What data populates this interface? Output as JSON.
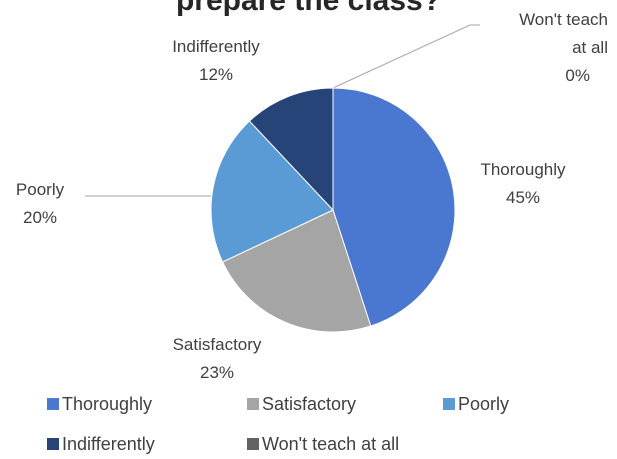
{
  "chart_data": {
    "type": "pie",
    "title": "prepare the class?",
    "categories": [
      "Thoroughly",
      "Satisfactory",
      "Poorly",
      "Indifferently",
      "Won't teach at all"
    ],
    "values": [
      45,
      23,
      20,
      12,
      0
    ],
    "value_labels": [
      "45%",
      "23%",
      "20%",
      "12%",
      "0%"
    ],
    "colors": [
      "#4a78d0",
      "#a5a5a5",
      "#5b9bd5",
      "#264478",
      "#636363"
    ],
    "legend": "bottom"
  }
}
